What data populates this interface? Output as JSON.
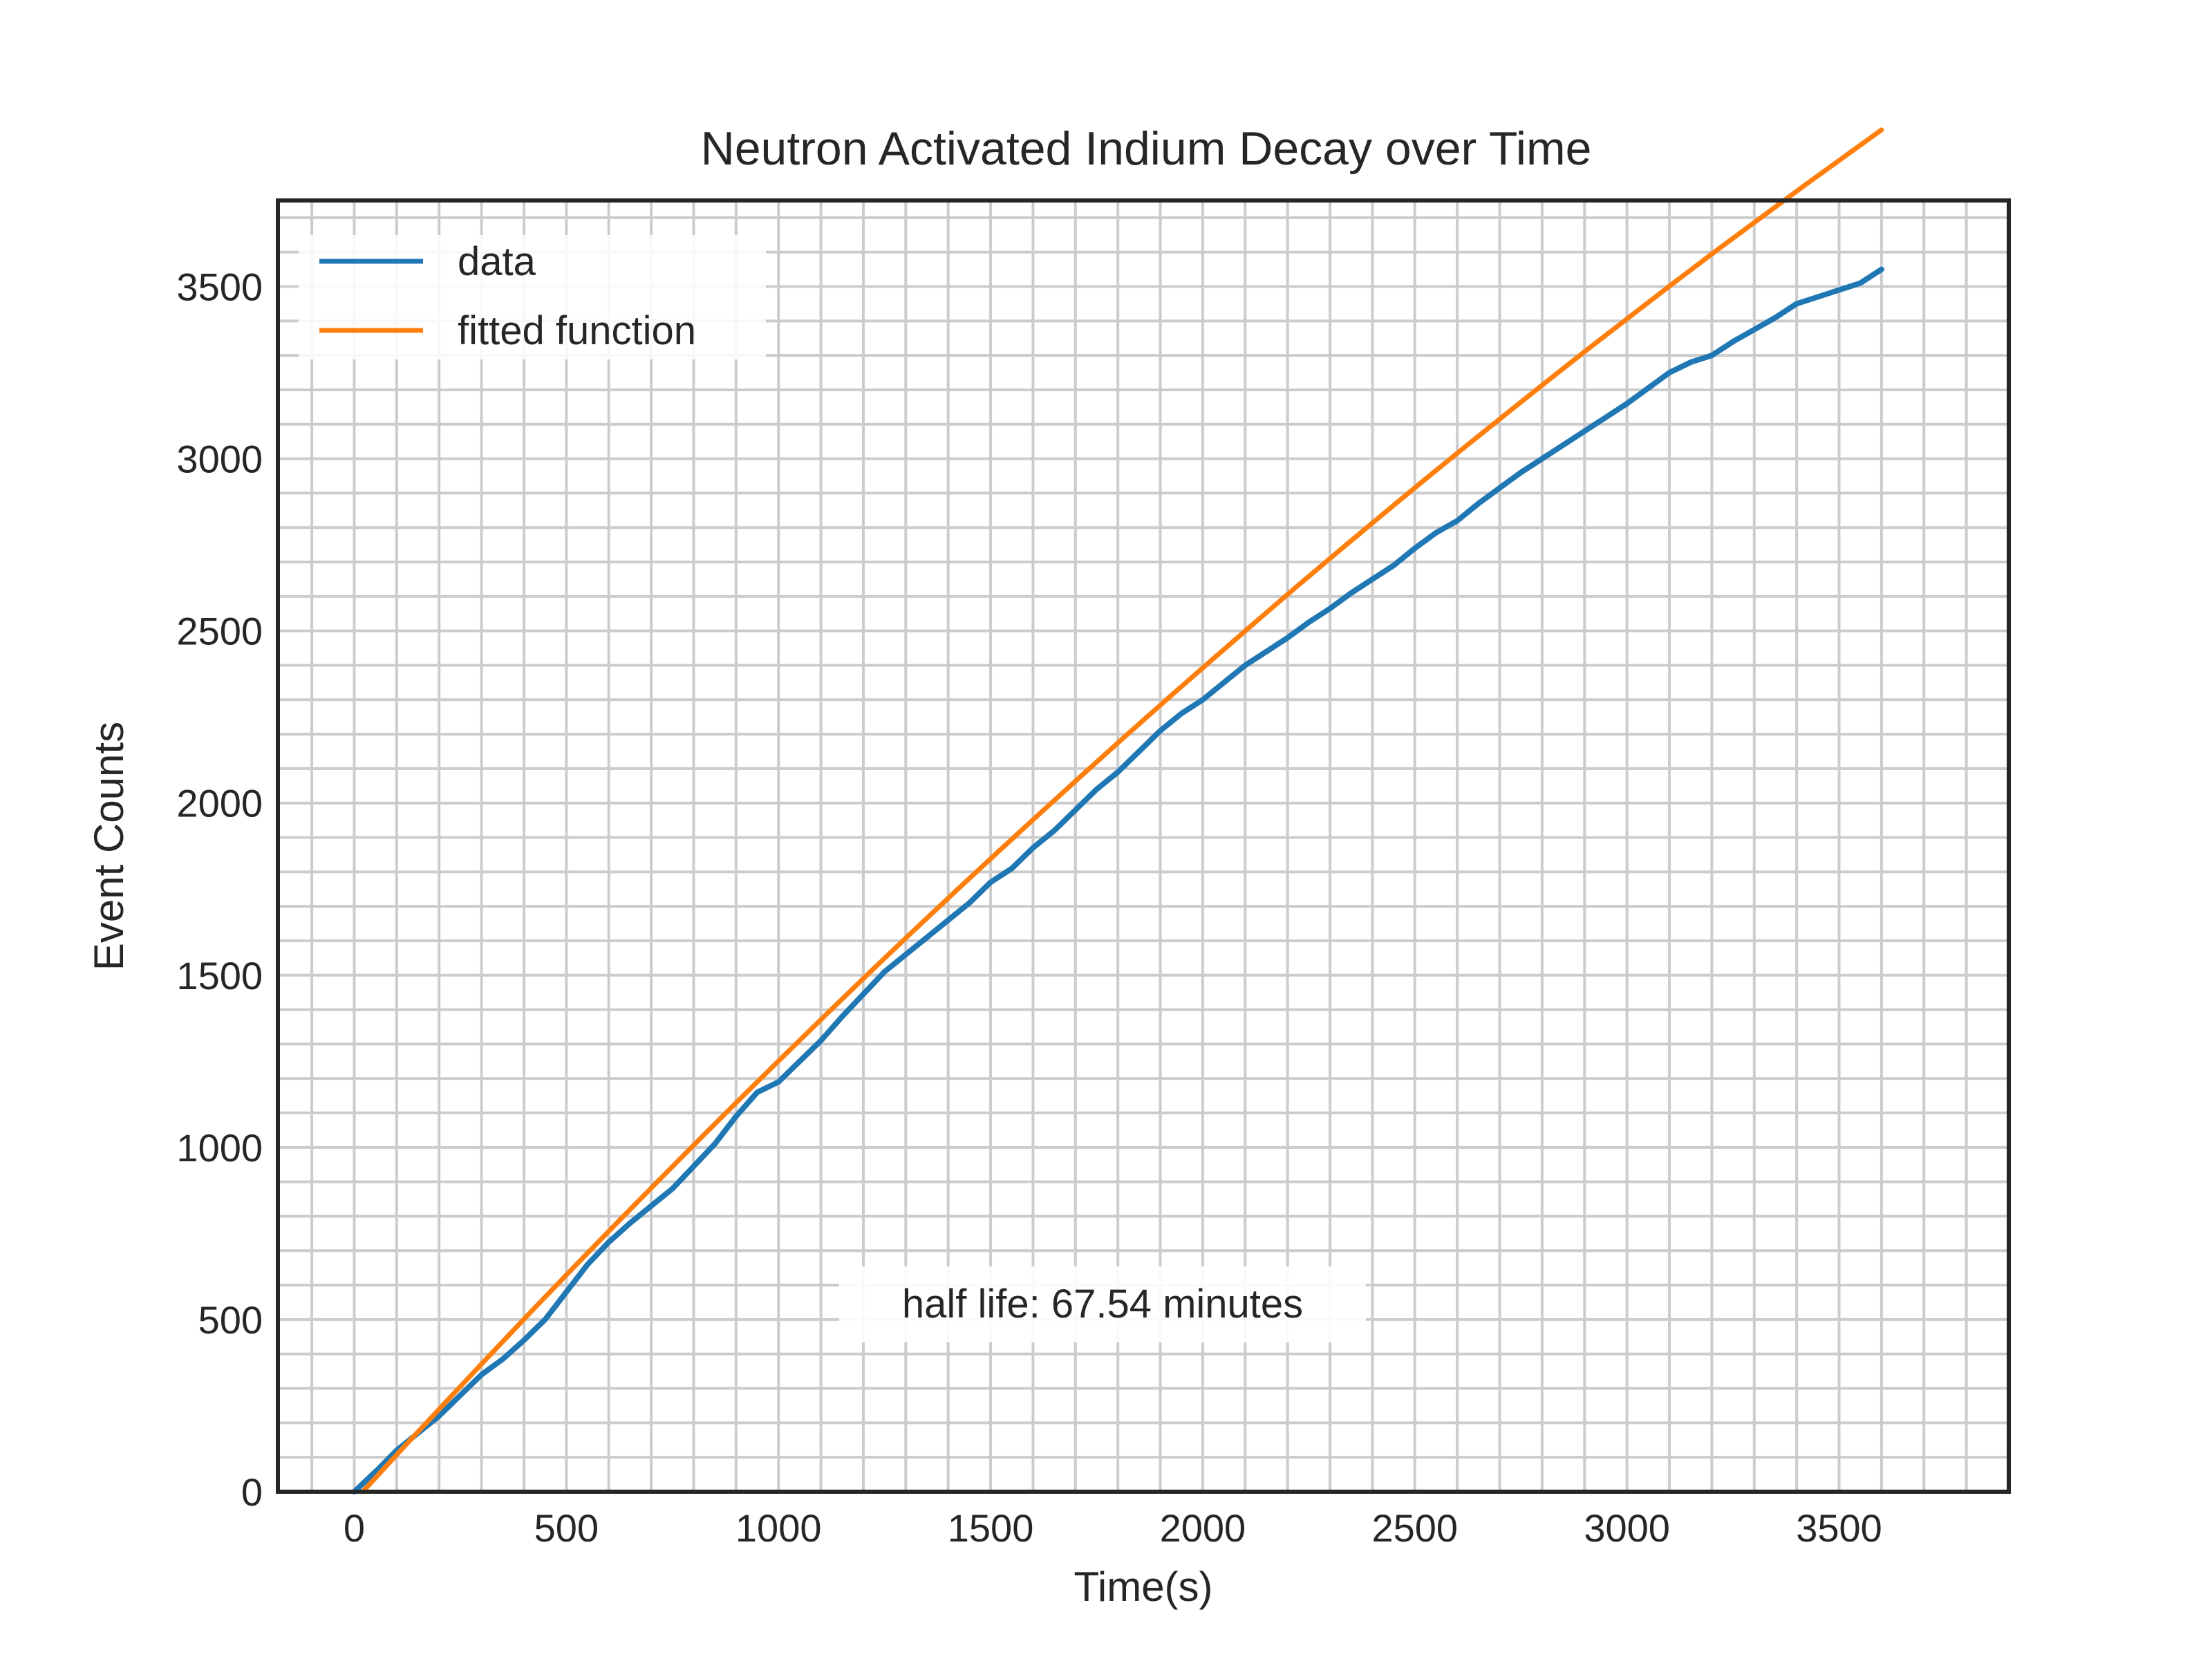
{
  "chart_data": {
    "type": "line",
    "title": "Neutron Activated Indium Decay over Time",
    "xlabel": "Time(s)",
    "ylabel": "Event Counts",
    "xlim": [
      -180,
      3900
    ],
    "ylim": [
      0,
      3750
    ],
    "xticks": [
      0,
      500,
      1000,
      1500,
      2000,
      2500,
      3000,
      3500
    ],
    "yticks": [
      0,
      500,
      1000,
      1500,
      2000,
      2500,
      3000,
      3500
    ],
    "grid": true,
    "grid_minor": true,
    "legend_position": "top-left",
    "annotation": "half life: 67.54 minutes",
    "series": [
      {
        "name": "data",
        "color": "#1f77b4",
        "x": [
          0,
          60,
          100,
          150,
          200,
          250,
          300,
          350,
          400,
          450,
          500,
          550,
          600,
          650,
          700,
          750,
          800,
          850,
          900,
          950,
          1000,
          1050,
          1100,
          1150,
          1200,
          1250,
          1300,
          1350,
          1400,
          1450,
          1500,
          1550,
          1600,
          1650,
          1700,
          1750,
          1800,
          1850,
          1900,
          1950,
          2000,
          2050,
          2100,
          2150,
          2200,
          2250,
          2300,
          2350,
          2400,
          2450,
          2500,
          2550,
          2600,
          2650,
          2700,
          2750,
          2800,
          2850,
          2900,
          2950,
          3000,
          3050,
          3100,
          3150,
          3200,
          3250,
          3300,
          3350,
          3400,
          3450,
          3500,
          3550,
          3600
        ],
        "y": [
          0,
          70,
          120,
          170,
          220,
          280,
          340,
          385,
          440,
          500,
          580,
          660,
          725,
          780,
          830,
          880,
          945,
          1010,
          1090,
          1160,
          1190,
          1250,
          1310,
          1380,
          1445,
          1510,
          1560,
          1610,
          1660,
          1710,
          1770,
          1810,
          1870,
          1920,
          1980,
          2040,
          2090,
          2150,
          2210,
          2260,
          2300,
          2350,
          2400,
          2440,
          2480,
          2525,
          2565,
          2610,
          2650,
          2690,
          2740,
          2785,
          2820,
          2870,
          2915,
          2960,
          3000,
          3040,
          3080,
          3120,
          3160,
          3205,
          3250,
          3280,
          3300,
          3340,
          3375,
          3410,
          3450,
          3470,
          3490,
          3510,
          3550
        ]
      },
      {
        "name": "fitted function",
        "color": "#ff7f0e",
        "half_life_minutes": 67.54,
        "x": [
          20,
          120,
          220,
          320,
          420,
          520,
          620,
          720,
          820,
          920,
          1020,
          1120,
          1220,
          1320,
          1420,
          1520,
          1620,
          1720,
          1820,
          1920,
          2020,
          2120,
          2220,
          2320,
          2420,
          2520,
          2620,
          2720,
          2820,
          2920,
          3020,
          3120,
          3220,
          3320,
          3420,
          3520,
          3600
        ],
        "y": [
          0,
          134,
          266,
          397,
          527,
          655,
          782,
          907,
          1031,
          1154,
          1275,
          1395,
          1514,
          1631,
          1747,
          1861,
          1974,
          2086,
          2197,
          2306,
          2414,
          2521,
          2627,
          2731,
          2834,
          2936,
          3036,
          3135,
          3233,
          3330,
          3425,
          3520,
          3613,
          3704,
          3795,
          3884,
          3955
        ]
      }
    ]
  }
}
